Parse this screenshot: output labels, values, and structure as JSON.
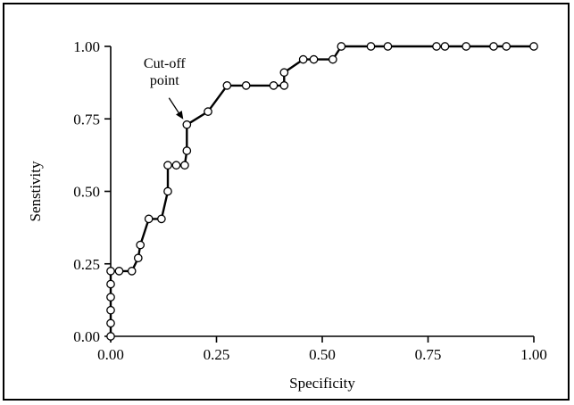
{
  "chart_data": {
    "type": "line",
    "xlabel": "Specificity",
    "ylabel": "Senstivity",
    "xlim": [
      0,
      1
    ],
    "ylim": [
      0,
      1
    ],
    "x_ticks": [
      "0.00",
      "0.25",
      "0.50",
      "0.75",
      "1.00"
    ],
    "y_ticks": [
      "0.00",
      "0.25",
      "0.50",
      "0.75",
      "1.00"
    ],
    "grid": false,
    "marker": "open-circle",
    "annotation": {
      "text_lines": [
        "Cut-off",
        "point"
      ],
      "x": 0.18,
      "y": 0.73
    },
    "series": [
      {
        "points": [
          [
            0.0,
            0.0
          ],
          [
            0.0,
            0.045
          ],
          [
            0.0,
            0.09
          ],
          [
            0.0,
            0.135
          ],
          [
            0.0,
            0.18
          ],
          [
            0.0,
            0.225
          ],
          [
            0.02,
            0.225
          ],
          [
            0.05,
            0.225
          ],
          [
            0.065,
            0.27
          ],
          [
            0.07,
            0.315
          ],
          [
            0.09,
            0.405
          ],
          [
            0.12,
            0.405
          ],
          [
            0.135,
            0.5
          ],
          [
            0.135,
            0.59
          ],
          [
            0.155,
            0.59
          ],
          [
            0.175,
            0.59
          ],
          [
            0.18,
            0.64
          ],
          [
            0.18,
            0.73
          ],
          [
            0.23,
            0.775
          ],
          [
            0.275,
            0.865
          ],
          [
            0.32,
            0.865
          ],
          [
            0.385,
            0.865
          ],
          [
            0.41,
            0.865
          ],
          [
            0.41,
            0.91
          ],
          [
            0.455,
            0.955
          ],
          [
            0.48,
            0.955
          ],
          [
            0.525,
            0.955
          ],
          [
            0.545,
            1.0
          ],
          [
            0.615,
            1.0
          ],
          [
            0.655,
            1.0
          ],
          [
            0.77,
            1.0
          ],
          [
            0.79,
            1.0
          ],
          [
            0.84,
            1.0
          ],
          [
            0.905,
            1.0
          ],
          [
            0.935,
            1.0
          ],
          [
            1.0,
            1.0
          ]
        ]
      }
    ]
  }
}
